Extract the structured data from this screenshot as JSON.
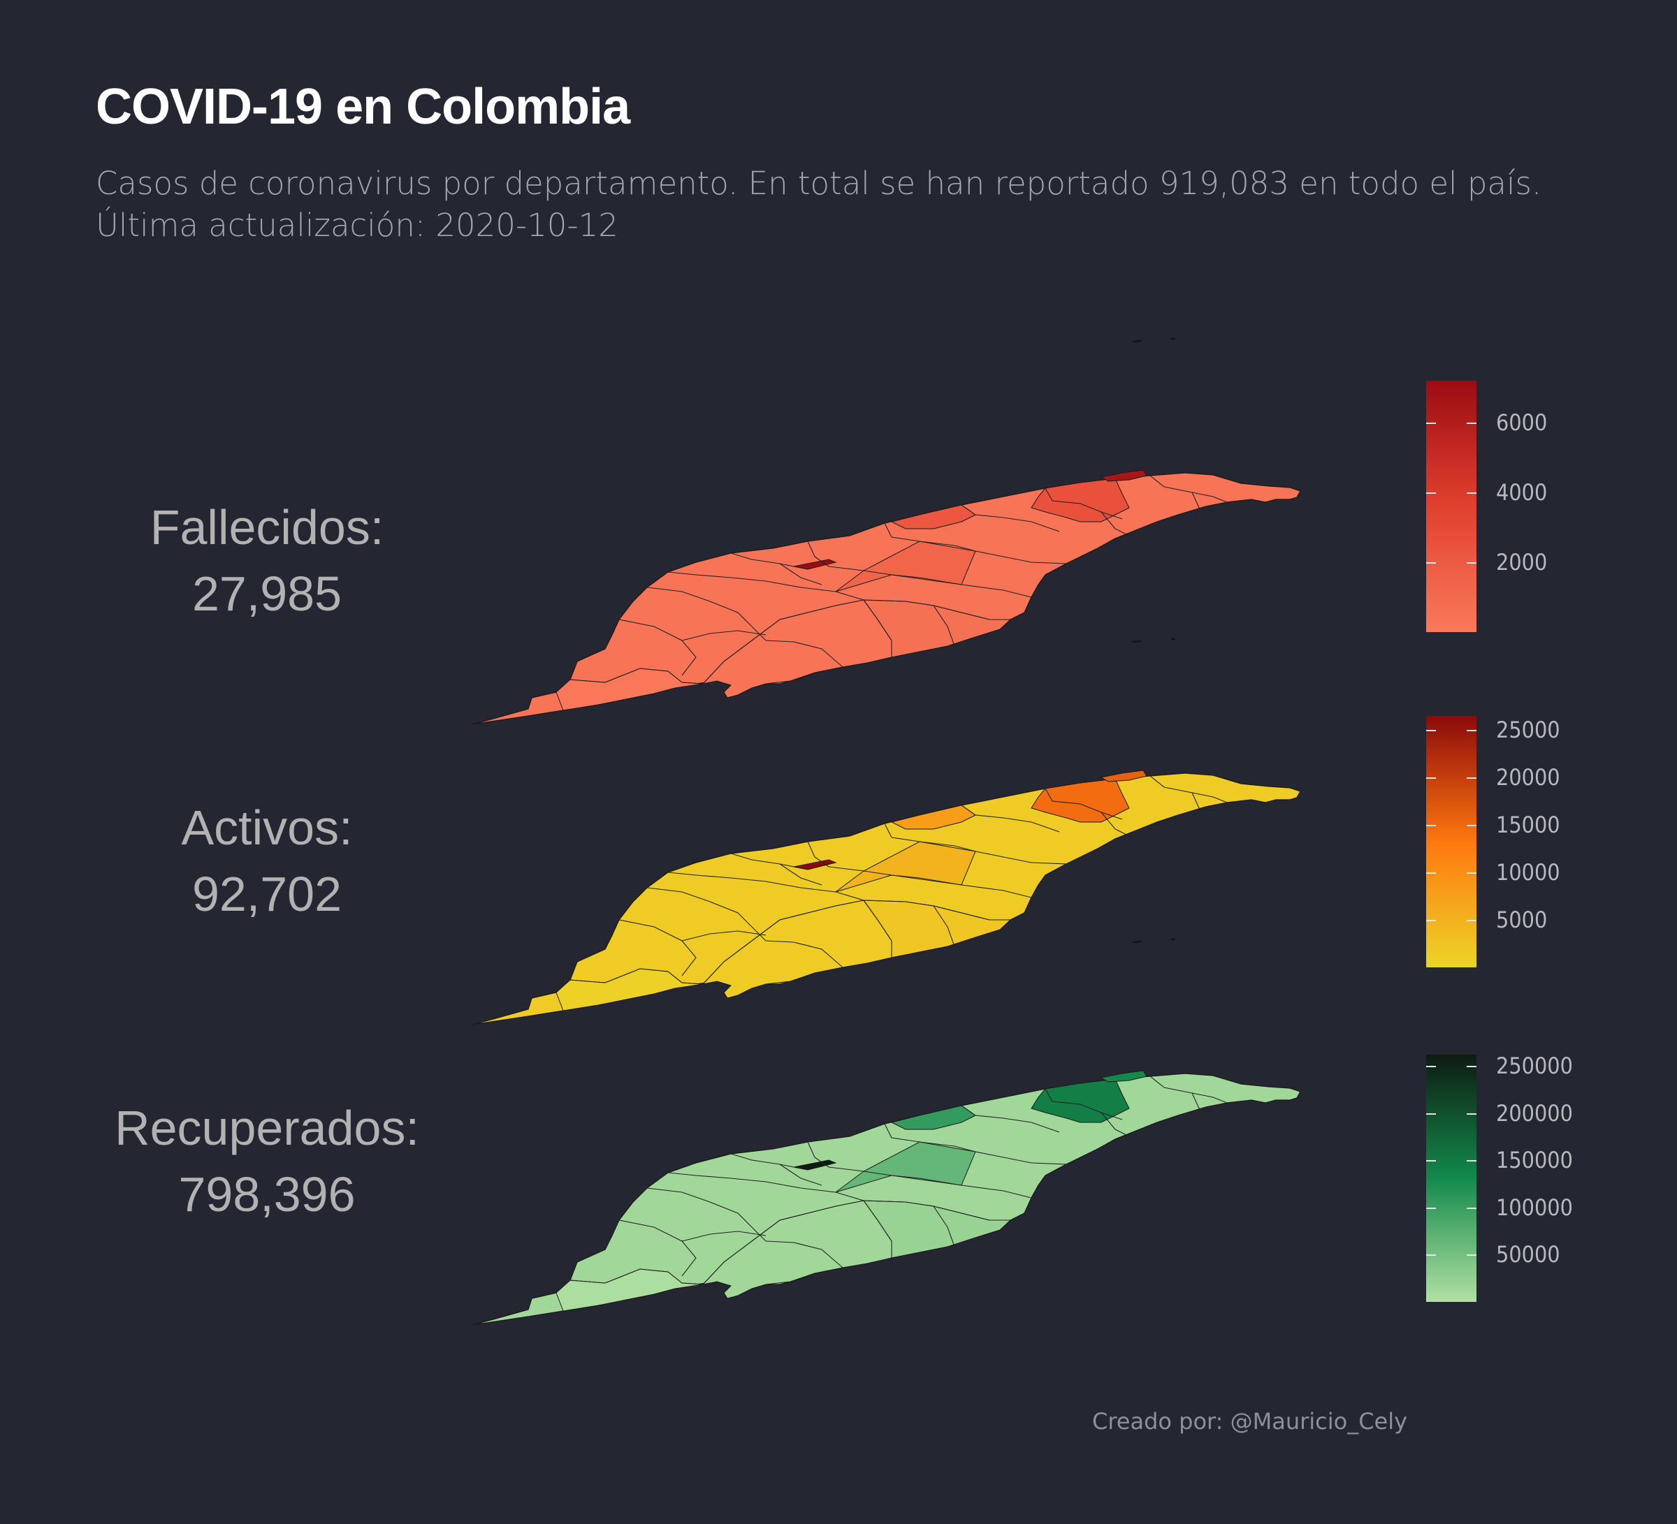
{
  "title": "COVID-19 en Colombia",
  "subtitle": {
    "line1": "Casos de coronavirus por departamento. En total se han reportado 919,083 en todo el país.",
    "line2": "Última actualización: 2020-10-12"
  },
  "panels": [
    {
      "label": "Fallecidos:",
      "value": "27,985",
      "colors": {
        "low": "#f97a5b",
        "high": "#9b0c12",
        "mid": "#e2402f"
      },
      "legend_ticks": [
        "2000",
        "4000",
        "6000"
      ],
      "legend_range": [
        0,
        7200
      ],
      "legend_tick_values": [
        2000,
        4000,
        6000
      ],
      "highlight_levels": {
        "northeast": 0.35,
        "northcentral": 0.3,
        "bogota": 1.0,
        "coast_ne": 0.9,
        "base": 0.05
      }
    },
    {
      "label": "Activos:",
      "value": "92,702",
      "colors": {
        "low": "#ecd527",
        "high": "#8b0a0a",
        "mid": "#ff7710"
      },
      "legend_ticks": [
        "5000",
        "10000",
        "15000",
        "20000",
        "25000"
      ],
      "legend_range": [
        0,
        26500
      ],
      "legend_tick_values": [
        5000,
        10000,
        15000,
        20000,
        25000
      ],
      "highlight_levels": {
        "northeast": 0.55,
        "northcentral": 0.3,
        "bogota": 1.0,
        "coast_ne": 0.6,
        "base": 0.05
      }
    },
    {
      "label": "Recuperados:",
      "value": "798,396",
      "colors": {
        "low": "#b1e1a2",
        "high": "#0d1c10",
        "mid": "#138a4c"
      },
      "legend_ticks": [
        "50000",
        "100000",
        "150000",
        "200000",
        "250000"
      ],
      "legend_range": [
        0,
        262000
      ],
      "legend_tick_values": [
        50000,
        100000,
        150000,
        200000,
        250000
      ],
      "highlight_levels": {
        "northeast": 0.55,
        "northcentral": 0.4,
        "bogota": 1.0,
        "coast_ne": 0.5,
        "base": 0.05
      }
    }
  ],
  "credit": "Creado por: @Mauricio_Cely"
}
